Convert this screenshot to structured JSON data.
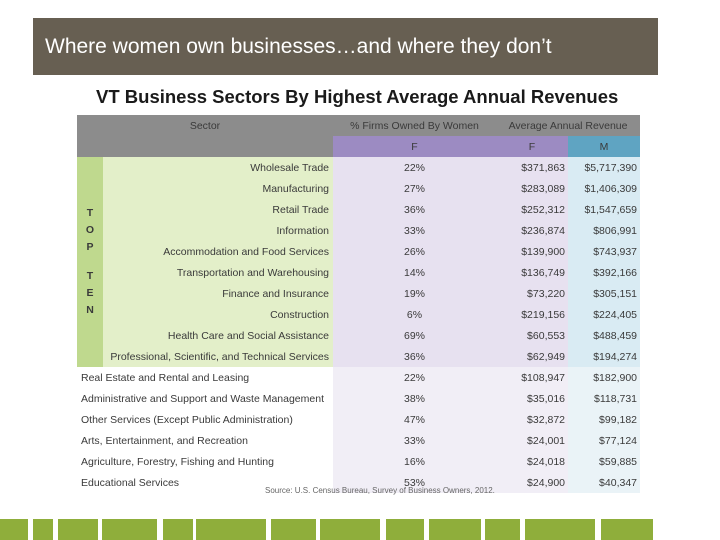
{
  "slide": {
    "title": "Where women own businesses…and where they don’t",
    "table_title": "VT Business Sectors By Highest Average Annual Revenues",
    "source": "Source: U.S. Census Bureau, Survey of Business Owners, 2012."
  },
  "table": {
    "headers": {
      "sector": "Sector",
      "pct": "% Firms Owned By Women",
      "revenue": "Average Annual Revenue",
      "f": "F",
      "f2": "F",
      "m": "M"
    },
    "top_label_1": "T O P",
    "top_label_2": "T E N",
    "top_rows": [
      {
        "sector": "Wholesale Trade",
        "pct": "22%",
        "f": "$371,863",
        "m": "$5,717,390"
      },
      {
        "sector": "Manufacturing",
        "pct": "27%",
        "f": "$283,089",
        "m": "$1,406,309"
      },
      {
        "sector": "Retail Trade",
        "pct": "36%",
        "f": "$252,312",
        "m": "$1,547,659"
      },
      {
        "sector": "Information",
        "pct": "33%",
        "f": "$236,874",
        "m": "$806,991"
      },
      {
        "sector": "Accommodation and Food Services",
        "pct": "26%",
        "f": "$139,900",
        "m": "$743,937"
      },
      {
        "sector": "Transportation and Warehousing",
        "pct": "14%",
        "f": "$136,749",
        "m": "$392,166"
      },
      {
        "sector": "Finance and Insurance",
        "pct": "19%",
        "f": "$73,220",
        "m": "$305,151"
      },
      {
        "sector": "Construction",
        "pct": "6%",
        "f": "$219,156",
        "m": "$224,405"
      },
      {
        "sector": "Health Care and Social Assistance",
        "pct": "69%",
        "f": "$60,553",
        "m": "$488,459"
      },
      {
        "sector": "Professional, Scientific, and Technical Services",
        "pct": "36%",
        "f": "$62,949",
        "m": "$194,274"
      }
    ],
    "other_rows": [
      {
        "sector": "Real Estate and Rental and Leasing",
        "pct": "22%",
        "f": "$108,947",
        "m": "$182,900"
      },
      {
        "sector": "Administrative and Support and Waste Management",
        "pct": "38%",
        "f": "$35,016",
        "m": "$118,731"
      },
      {
        "sector": "Other Services (Except Public Administration)",
        "pct": "47%",
        "f": "$32,872",
        "m": "$99,182"
      },
      {
        "sector": "Arts, Entertainment, and Recreation",
        "pct": "33%",
        "f": "$24,001",
        "m": "$77,124"
      },
      {
        "sector": "Agriculture, Forestry, Fishing and Hunting",
        "pct": "16%",
        "f": "$24,018",
        "m": "$59,885"
      },
      {
        "sector": "Educational Services",
        "pct": "53%",
        "f": "$24,900",
        "m": "$40,347"
      }
    ]
  },
  "colors": {
    "title_bar": "#675f52",
    "header_gray": "#8c8c8c",
    "female_purple": "#9c8bc2",
    "male_blue": "#5fa4c2",
    "top_ten_green": "#bfd98e",
    "footer_green": "#8fae3b"
  }
}
